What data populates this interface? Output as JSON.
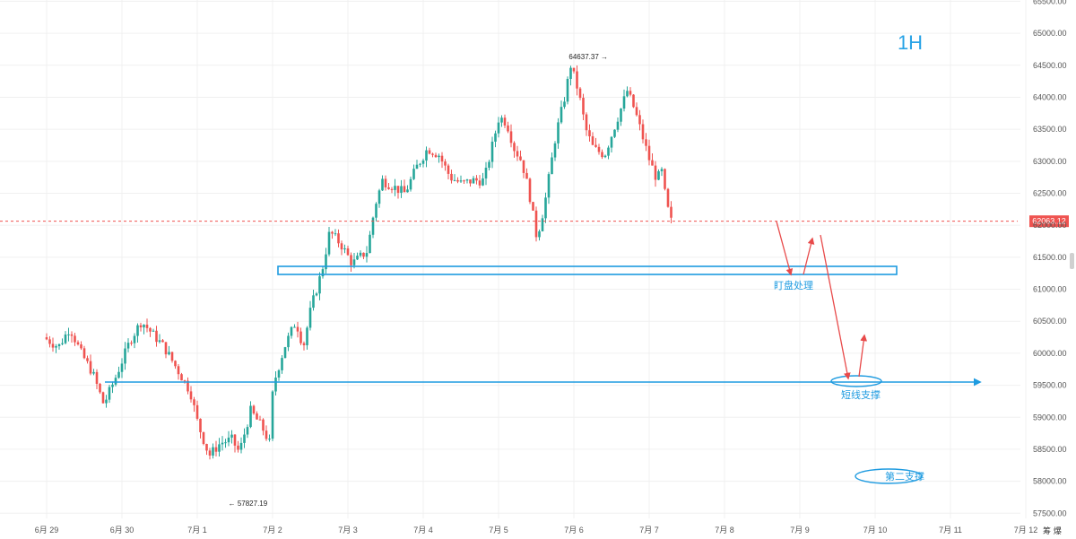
{
  "chart_data": {
    "type": "candlestick",
    "timeframe_label": "1H",
    "x_tick_labels": [
      "6月 29",
      "6月 30",
      "7月 1",
      "7月 2",
      "7月 3",
      "7月 4",
      "7月 5",
      "7月 6",
      "7月 7",
      "7月 8",
      "7月 9",
      "7月 10",
      "7月 11",
      "7月 12"
    ],
    "y_ticks": [
      57500,
      58000,
      58500,
      59000,
      59500,
      60000,
      60500,
      61000,
      61500,
      62000,
      62500,
      63000,
      63500,
      64000,
      64500,
      65000,
      65500
    ],
    "y_tick_labels": [
      "57500.00",
      "58000.00",
      "58500.00",
      "59000.00",
      "59500.00",
      "60000.00",
      "60500.00",
      "61000.00",
      "61500.00",
      "62000.00",
      "62500.00",
      "63000.00",
      "63500.00",
      "64000.00",
      "64500.00",
      "65000.00",
      "65500.00"
    ],
    "ylim": [
      57420,
      65520
    ],
    "grid": true,
    "current_price": 62063.12,
    "current_price_label": "62063.12",
    "high_marker": {
      "value": 64637.37,
      "label": "64637.37 →",
      "time": "7月 7"
    },
    "low_marker": {
      "value": 57827.19,
      "label": "← 57827.19",
      "time": "7月 1"
    },
    "colors": {
      "up": "#26a69a",
      "down": "#ef5350",
      "annotation": "#1e9be0",
      "price_line": "#ef5350",
      "arrow": "#e84a4a"
    },
    "waypoints": [
      [
        0.0,
        60250
      ],
      [
        0.2,
        60100
      ],
      [
        0.35,
        60400
      ],
      [
        0.5,
        60000
      ],
      [
        0.65,
        59700
      ],
      [
        0.8,
        59200
      ],
      [
        0.95,
        59600
      ],
      [
        1.05,
        59900
      ],
      [
        1.15,
        60200
      ],
      [
        1.3,
        60500
      ],
      [
        1.45,
        60300
      ],
      [
        1.6,
        60100
      ],
      [
        1.8,
        59700
      ],
      [
        1.95,
        59400
      ],
      [
        2.05,
        58900
      ],
      [
        2.2,
        58400
      ],
      [
        2.35,
        58600
      ],
      [
        2.5,
        58650
      ],
      [
        2.6,
        58450
      ],
      [
        2.75,
        59100
      ],
      [
        2.9,
        58850
      ],
      [
        3.0,
        58600
      ],
      [
        3.05,
        59500
      ],
      [
        3.2,
        60100
      ],
      [
        3.35,
        60500
      ],
      [
        3.45,
        60100
      ],
      [
        3.55,
        60700
      ],
      [
        3.7,
        61300
      ],
      [
        3.8,
        61900
      ],
      [
        3.95,
        61700
      ],
      [
        4.1,
        61400
      ],
      [
        4.3,
        61600
      ],
      [
        4.4,
        62300
      ],
      [
        4.5,
        62700
      ],
      [
        4.65,
        62600
      ],
      [
        4.8,
        62500
      ],
      [
        4.95,
        62900
      ],
      [
        5.1,
        63200
      ],
      [
        5.25,
        63100
      ],
      [
        5.4,
        62750
      ],
      [
        5.55,
        62650
      ],
      [
        5.7,
        62700
      ],
      [
        5.85,
        62700
      ],
      [
        5.95,
        63200
      ],
      [
        6.05,
        63700
      ],
      [
        6.15,
        63600
      ],
      [
        6.25,
        63200
      ],
      [
        6.35,
        63000
      ],
      [
        6.45,
        62500
      ],
      [
        6.55,
        61800
      ],
      [
        6.65,
        62300
      ],
      [
        6.8,
        63400
      ],
      [
        6.92,
        64000
      ],
      [
        7.0,
        64500
      ],
      [
        7.1,
        64100
      ],
      [
        7.2,
        63500
      ],
      [
        7.3,
        63200
      ],
      [
        7.45,
        63100
      ],
      [
        7.6,
        63600
      ],
      [
        7.75,
        64100
      ],
      [
        7.85,
        63800
      ],
      [
        7.95,
        63400
      ],
      [
        8.05,
        63000
      ],
      [
        8.15,
        62700
      ],
      [
        8.2,
        62900
      ],
      [
        8.25,
        62500
      ],
      [
        8.32,
        62063
      ]
    ]
  },
  "annotations": {
    "zone_label": "盯盘处理",
    "short_support_label": "短线支撑",
    "second_support_label": "第二支撑"
  },
  "price_scale": {
    "label": "筹 爆"
  }
}
